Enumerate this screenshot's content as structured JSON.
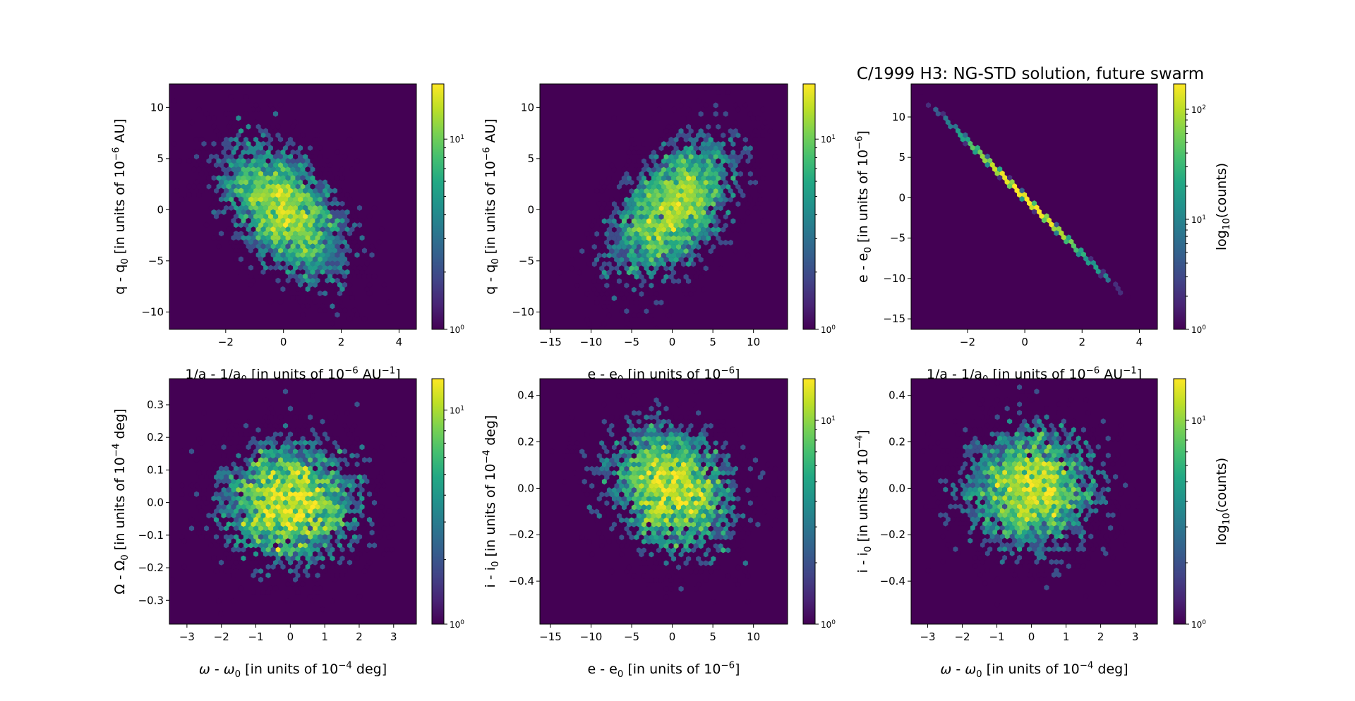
{
  "chart_data": {
    "type": "heatmap",
    "subtype": "hexbin (log color scale)",
    "title": "C/1999 H3: NG-STD solution, future swarm",
    "colormap": "viridis",
    "colors": {
      "empty": "#440154",
      "low": "#440154",
      "high": "#fde725"
    },
    "panels": [
      {
        "xlabel": [
          {
            "t": "1/a - 1/a"
          },
          {
            "sub": "0"
          },
          {
            "t": " [in units of 10"
          },
          {
            "sup": "−6"
          },
          {
            "t": " AU"
          },
          {
            "sup": "−1"
          },
          {
            "t": "]"
          }
        ],
        "ylabel": [
          {
            "t": "q - q"
          },
          {
            "sub": "0"
          },
          {
            "t": " [in units of 10"
          },
          {
            "sup": "−6"
          },
          {
            "t": " AU]"
          }
        ],
        "xlim": [
          -3.95,
          4.6
        ],
        "ylim": [
          -11.7,
          12.3
        ],
        "xticks": [
          {
            "v": -2,
            "l": "−2"
          },
          {
            "v": 0,
            "l": "0"
          },
          {
            "v": 2,
            "l": "2"
          },
          {
            "v": 4,
            "l": "4"
          }
        ],
        "yticks": [
          {
            "v": -10,
            "l": "−10"
          },
          {
            "v": -5,
            "l": "−5"
          },
          {
            "v": 0,
            "l": "0"
          },
          {
            "v": 5,
            "l": "5"
          },
          {
            "v": 10,
            "l": "10"
          }
        ],
        "colorbar": {
          "max": 19.5,
          "ticks": [
            {
              "v": 1,
              "base": "10",
              "exp": "0"
            },
            {
              "v": 10,
              "base": "10",
              "exp": "1"
            }
          ],
          "label": null
        },
        "distribution": {
          "n": 4200,
          "x_std": 1.1,
          "y_std": 3.5,
          "corr": -0.5,
          "seed": 11,
          "gridsize": 50
        }
      },
      {
        "xlabel": [
          {
            "t": "e - e"
          },
          {
            "sub": "0"
          },
          {
            "t": " [in units of 10"
          },
          {
            "sup": "−6"
          },
          {
            "t": "]"
          }
        ],
        "ylabel": [
          {
            "t": "q - q"
          },
          {
            "sub": "0"
          },
          {
            "t": " [in units of 10"
          },
          {
            "sup": "−6"
          },
          {
            "t": " AU]"
          }
        ],
        "xlim": [
          -16.3,
          14.2
        ],
        "ylim": [
          -11.7,
          12.3
        ],
        "xticks": [
          {
            "v": -15,
            "l": "−15"
          },
          {
            "v": -10,
            "l": "−10"
          },
          {
            "v": -5,
            "l": "−5"
          },
          {
            "v": 0,
            "l": "0"
          },
          {
            "v": 5,
            "l": "5"
          },
          {
            "v": 10,
            "l": "10"
          }
        ],
        "yticks": [
          {
            "v": -10,
            "l": "−10"
          },
          {
            "v": -5,
            "l": "−5"
          },
          {
            "v": 0,
            "l": "0"
          },
          {
            "v": 5,
            "l": "5"
          },
          {
            "v": 10,
            "l": "10"
          }
        ],
        "colorbar": {
          "max": 19.5,
          "ticks": [
            {
              "v": 1,
              "base": "10",
              "exp": "0"
            },
            {
              "v": 10,
              "base": "10",
              "exp": "1"
            }
          ],
          "label": null
        },
        "distribution": {
          "n": 4200,
          "x_std": 3.9,
          "y_std": 3.5,
          "corr": 0.5,
          "seed": 23,
          "gridsize": 50
        }
      },
      {
        "xlabel": [
          {
            "t": "1/a - 1/a"
          },
          {
            "sub": "0"
          },
          {
            "t": " [in units of 10"
          },
          {
            "sup": "−6"
          },
          {
            "t": " AU"
          },
          {
            "sup": "−1"
          },
          {
            "t": "]"
          }
        ],
        "ylabel": [
          {
            "t": "e - e"
          },
          {
            "sub": "0"
          },
          {
            "t": " [in units of 10"
          },
          {
            "sup": "−6"
          },
          {
            "t": "]"
          }
        ],
        "xlim": [
          -3.97,
          4.63
        ],
        "ylim": [
          -16.3,
          14.1
        ],
        "xticks": [
          {
            "v": -2,
            "l": "−2"
          },
          {
            "v": 0,
            "l": "0"
          },
          {
            "v": 2,
            "l": "2"
          },
          {
            "v": 4,
            "l": "4"
          }
        ],
        "yticks": [
          {
            "v": -15,
            "l": "−15"
          },
          {
            "v": -10,
            "l": "−10"
          },
          {
            "v": -5,
            "l": "−5"
          },
          {
            "v": 0,
            "l": "0"
          },
          {
            "v": 5,
            "l": "5"
          },
          {
            "v": 10,
            "l": "10"
          }
        ],
        "colorbar": {
          "max": 170,
          "ticks": [
            {
              "v": 1,
              "base": "10",
              "exp": "0"
            },
            {
              "v": 10,
              "base": "10",
              "exp": "1"
            },
            {
              "v": 100,
              "base": "10",
              "exp": "2"
            }
          ],
          "label": [
            {
              "t": "log"
            },
            {
              "sub": "10"
            },
            {
              "t": "(counts)"
            }
          ]
        },
        "distribution": {
          "n": 4200,
          "x_std": 1.1,
          "slope": -3.5,
          "y_noise": 0.08,
          "seed": 37,
          "gridsize": 50
        }
      },
      {
        "xlabel": [
          {
            "it": "ω"
          },
          {
            "t": " - "
          },
          {
            "it": "ω"
          },
          {
            "sub": "0"
          },
          {
            "t": " [in units of 10"
          },
          {
            "sup": "−4"
          },
          {
            "t": " deg]"
          }
        ],
        "ylabel": [
          {
            "t": "Ω - Ω"
          },
          {
            "sub": "0"
          },
          {
            "t": " [in units of 10"
          },
          {
            "sup": "−4"
          },
          {
            "t": " deg]"
          }
        ],
        "xlim": [
          -3.51,
          3.66
        ],
        "ylim": [
          -0.373,
          0.38
        ],
        "xticks": [
          {
            "v": -3,
            "l": "−3"
          },
          {
            "v": -2,
            "l": "−2"
          },
          {
            "v": -1,
            "l": "−1"
          },
          {
            "v": 0,
            "l": "0"
          },
          {
            "v": 1,
            "l": "1"
          },
          {
            "v": 2,
            "l": "2"
          },
          {
            "v": 3,
            "l": "3"
          }
        ],
        "yticks": [
          {
            "v": -0.3,
            "l": "−0.3"
          },
          {
            "v": -0.2,
            "l": "−0.2"
          },
          {
            "v": -0.1,
            "l": "−0.1"
          },
          {
            "v": 0,
            "l": "0.0"
          },
          {
            "v": 0.1,
            "l": "0.1"
          },
          {
            "v": 0.2,
            "l": "0.2"
          },
          {
            "v": 0.3,
            "l": "0.3"
          }
        ],
        "colorbar": {
          "max": 14,
          "ticks": [
            {
              "v": 1,
              "base": "10",
              "exp": "0"
            },
            {
              "v": 10,
              "base": "10",
              "exp": "1"
            }
          ],
          "label": null
        },
        "distribution": {
          "n": 4200,
          "x_std": 1.0,
          "y_std": 0.1,
          "corr": 0.0,
          "seed": 41,
          "gridsize": 50
        }
      },
      {
        "xlabel": [
          {
            "t": "e - e"
          },
          {
            "sub": "0"
          },
          {
            "t": " [in units of 10"
          },
          {
            "sup": "−6"
          },
          {
            "t": "]"
          }
        ],
        "ylabel": [
          {
            "t": "i - i"
          },
          {
            "sub": "0"
          },
          {
            "t": " [in units of 10"
          },
          {
            "sup": "−4"
          },
          {
            "t": " deg]"
          }
        ],
        "xlim": [
          -16.3,
          14.2
        ],
        "ylim": [
          -0.585,
          0.472
        ],
        "xticks": [
          {
            "v": -15,
            "l": "−15"
          },
          {
            "v": -10,
            "l": "−10"
          },
          {
            "v": -5,
            "l": "−5"
          },
          {
            "v": 0,
            "l": "0"
          },
          {
            "v": 5,
            "l": "5"
          },
          {
            "v": 10,
            "l": "10"
          }
        ],
        "yticks": [
          {
            "v": -0.4,
            "l": "−0.4"
          },
          {
            "v": -0.2,
            "l": "−0.2"
          },
          {
            "v": 0,
            "l": "0.0"
          },
          {
            "v": 0.2,
            "l": "0.2"
          },
          {
            "v": 0.4,
            "l": "0.4"
          }
        ],
        "colorbar": {
          "max": 16,
          "ticks": [
            {
              "v": 1,
              "base": "10",
              "exp": "0"
            },
            {
              "v": 10,
              "base": "10",
              "exp": "1"
            }
          ],
          "label": null
        },
        "distribution": {
          "n": 4200,
          "x_std": 3.9,
          "y_std": 0.14,
          "corr": -0.2,
          "seed": 53,
          "gridsize": 50
        }
      },
      {
        "xlabel": [
          {
            "it": "ω"
          },
          {
            "t": " - "
          },
          {
            "it": "ω"
          },
          {
            "sub": "0"
          },
          {
            "t": " [in units of 10"
          },
          {
            "sup": "−4"
          },
          {
            "t": " deg]"
          }
        ],
        "ylabel": [
          {
            "t": "i - i"
          },
          {
            "sub": "0"
          },
          {
            "t": " [in units of 10"
          },
          {
            "sup": "−4"
          },
          {
            "t": "]"
          }
        ],
        "xlim": [
          -3.48,
          3.64
        ],
        "ylim": [
          -0.585,
          0.472
        ],
        "xticks": [
          {
            "v": -3,
            "l": "−3"
          },
          {
            "v": -2,
            "l": "−2"
          },
          {
            "v": -1,
            "l": "−1"
          },
          {
            "v": 0,
            "l": "0"
          },
          {
            "v": 1,
            "l": "1"
          },
          {
            "v": 2,
            "l": "2"
          },
          {
            "v": 3,
            "l": "3"
          }
        ],
        "yticks": [
          {
            "v": -0.4,
            "l": "−0.4"
          },
          {
            "v": -0.2,
            "l": "−0.2"
          },
          {
            "v": 0,
            "l": "0.0"
          },
          {
            "v": 0.2,
            "l": "0.2"
          },
          {
            "v": 0.4,
            "l": "0.4"
          }
        ],
        "colorbar": {
          "max": 16,
          "ticks": [
            {
              "v": 1,
              "base": "10",
              "exp": "0"
            },
            {
              "v": 10,
              "base": "10",
              "exp": "1"
            }
          ],
          "label": [
            {
              "t": "log"
            },
            {
              "sub": "10"
            },
            {
              "t": "(counts)"
            }
          ]
        },
        "distribution": {
          "n": 4200,
          "x_std": 1.0,
          "y_std": 0.135,
          "corr": 0.0,
          "seed": 67,
          "gridsize": 50
        }
      }
    ]
  }
}
